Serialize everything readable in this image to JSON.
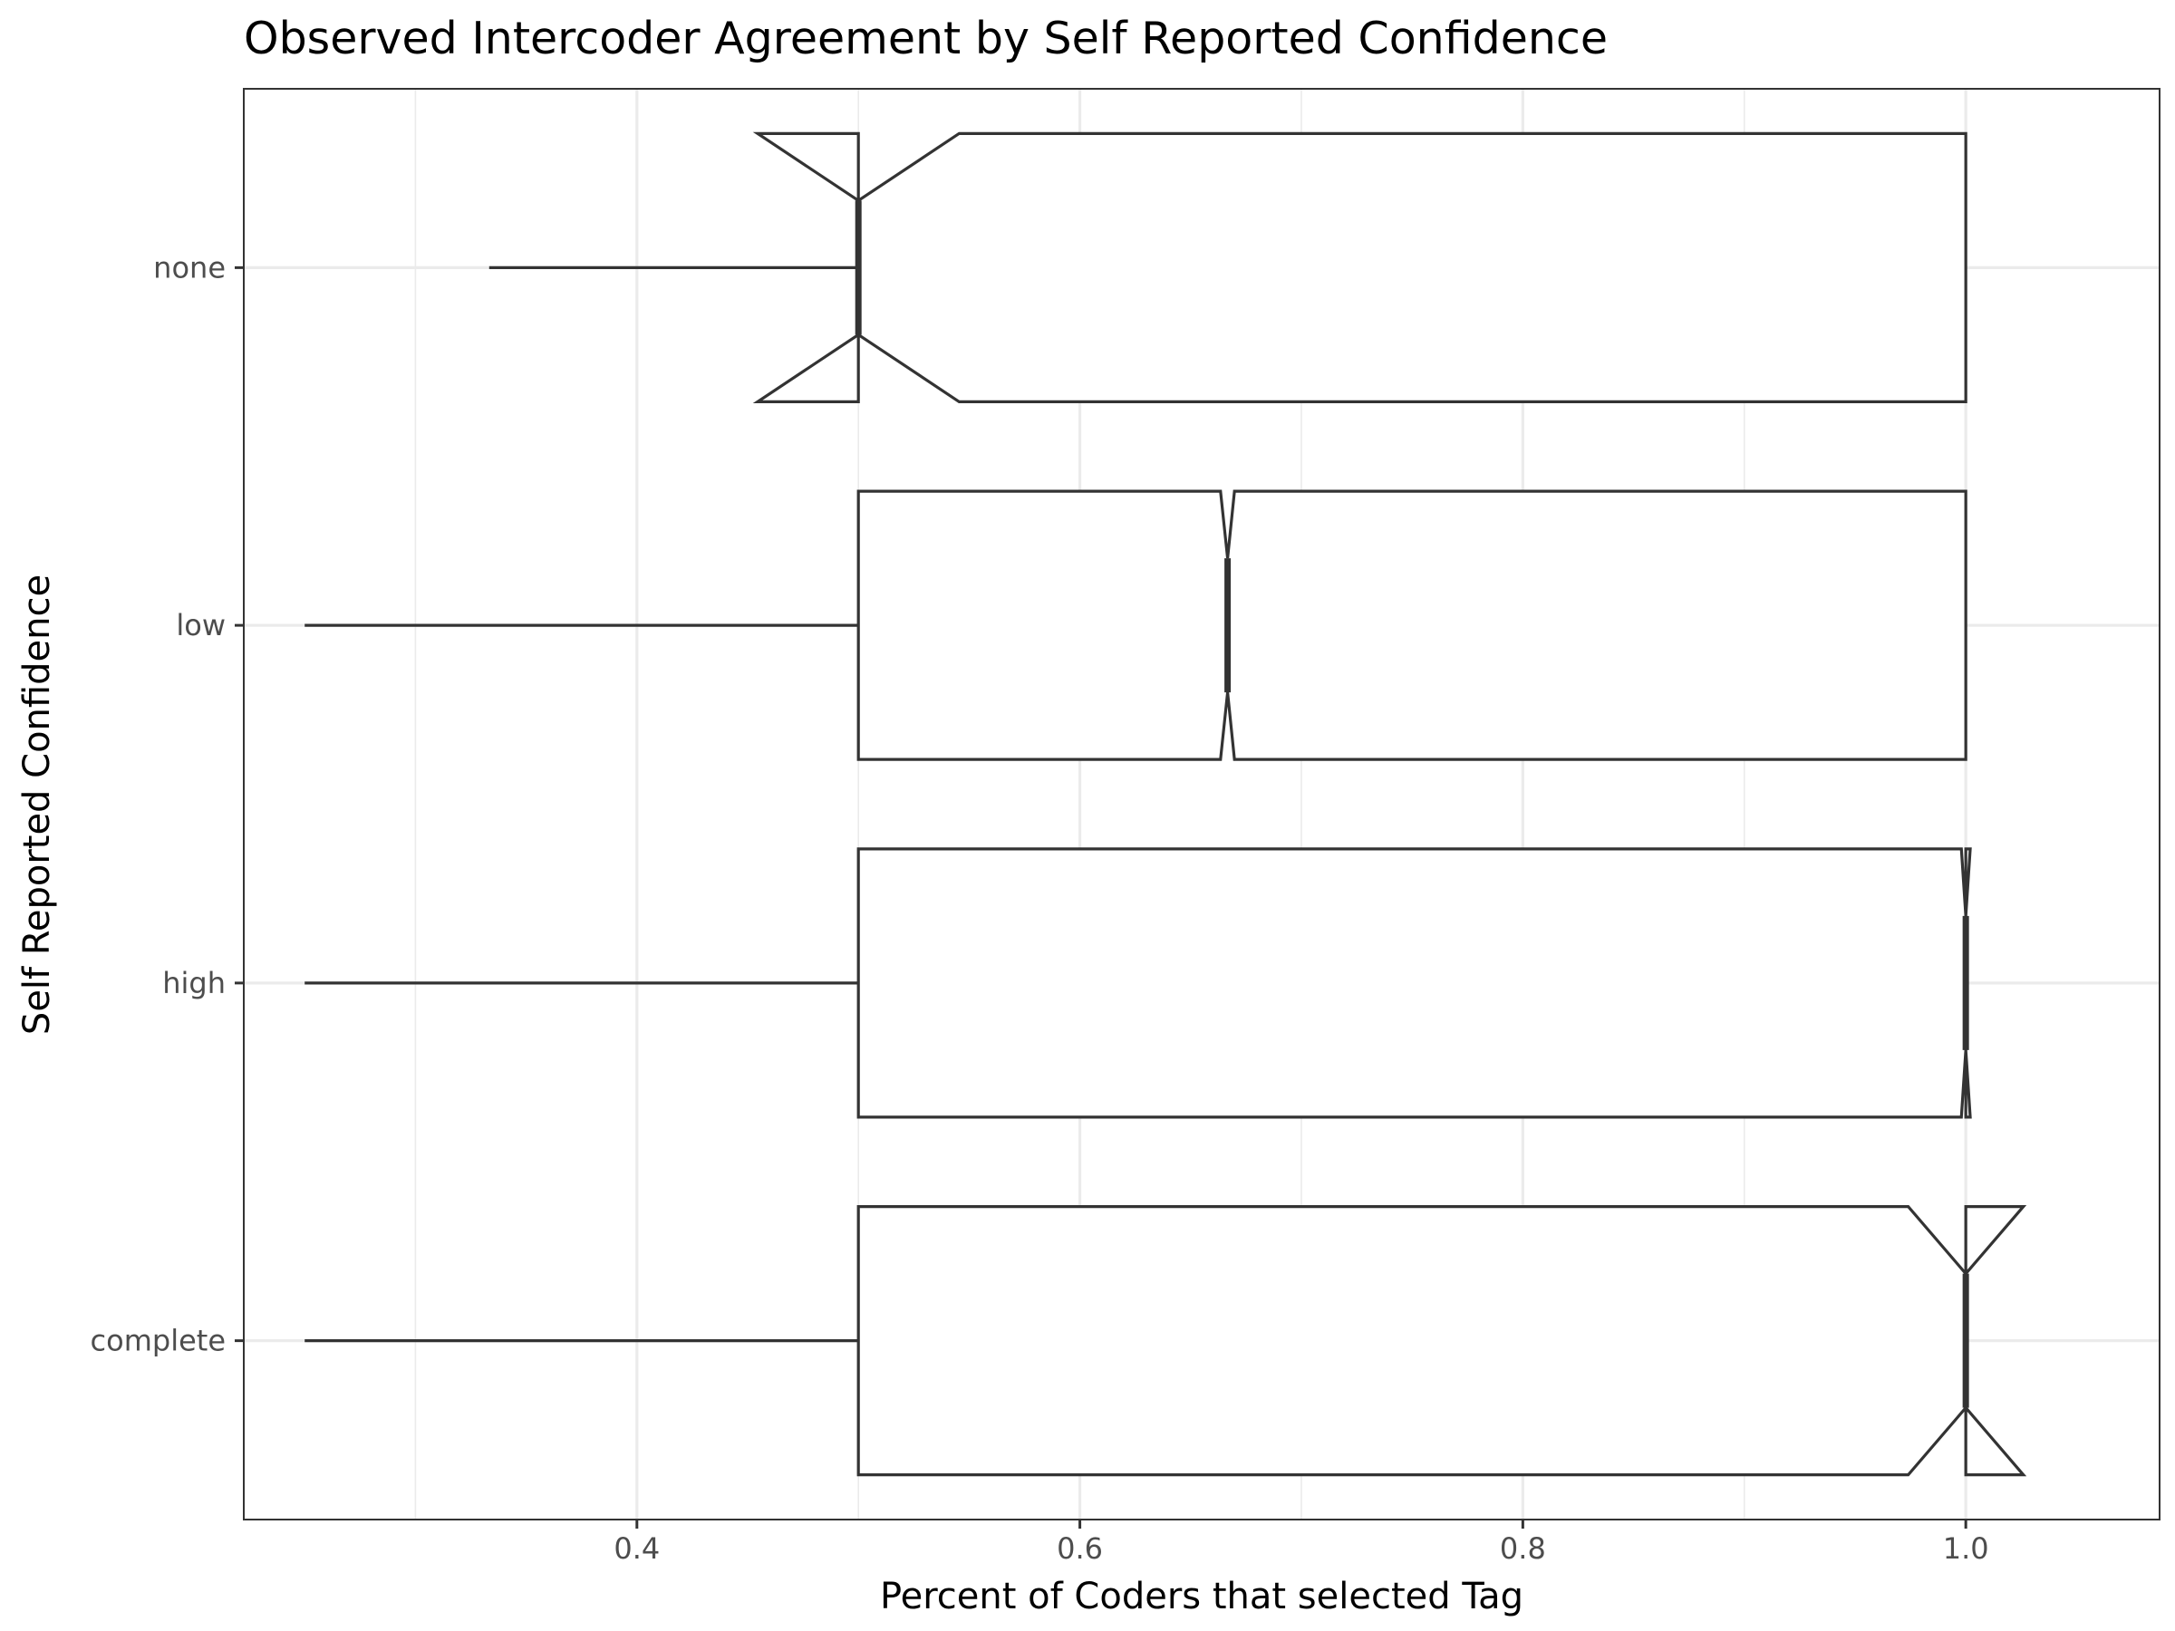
{
  "chart_data": {
    "type": "boxplot",
    "orientation": "horizontal",
    "notched": true,
    "title": "Observed Intercoder Agreement by Self Reported Confidence",
    "xlabel": "Percent of Coders that selected Tag",
    "ylabel": "Self Reported Confidence",
    "xlim": [
      0.2225,
      1.0875
    ],
    "x_ticks": [
      0.4,
      0.6,
      0.8,
      1.0
    ],
    "x_tick_labels": [
      "0.4",
      "0.6",
      "0.8",
      "1.0"
    ],
    "x_minor_grid": [
      0.3,
      0.5,
      0.7,
      0.9
    ],
    "categories": [
      "complete",
      "high",
      "low",
      "none"
    ],
    "boxes": [
      {
        "category": "complete",
        "whisker_low": 0.25,
        "q1": 0.5,
        "median": 1.0,
        "q3": 1.0,
        "whisker_high": 1.0,
        "notch_low": 0.974,
        "notch_high": 1.026
      },
      {
        "category": "high",
        "whisker_low": 0.25,
        "q1": 0.5,
        "median": 1.0,
        "q3": 1.0,
        "whisker_high": 1.0,
        "notch_low": 0.998,
        "notch_high": 1.002
      },
      {
        "category": "low",
        "whisker_low": 0.25,
        "q1": 0.5,
        "median": 0.6667,
        "q3": 1.0,
        "whisker_high": 1.0,
        "notch_low": 0.6635,
        "notch_high": 0.6698
      },
      {
        "category": "none",
        "whisker_low": 0.3333,
        "q1": 0.5,
        "median": 0.5,
        "q3": 1.0,
        "whisker_high": 1.0,
        "notch_low": 0.4545,
        "notch_high": 0.5455
      }
    ],
    "grid": true,
    "legend": "none",
    "colors": {
      "box_stroke": "#333333",
      "box_fill": "#ffffff",
      "grid": "#ebebeb",
      "tick_label": "#4d4d4d"
    }
  }
}
